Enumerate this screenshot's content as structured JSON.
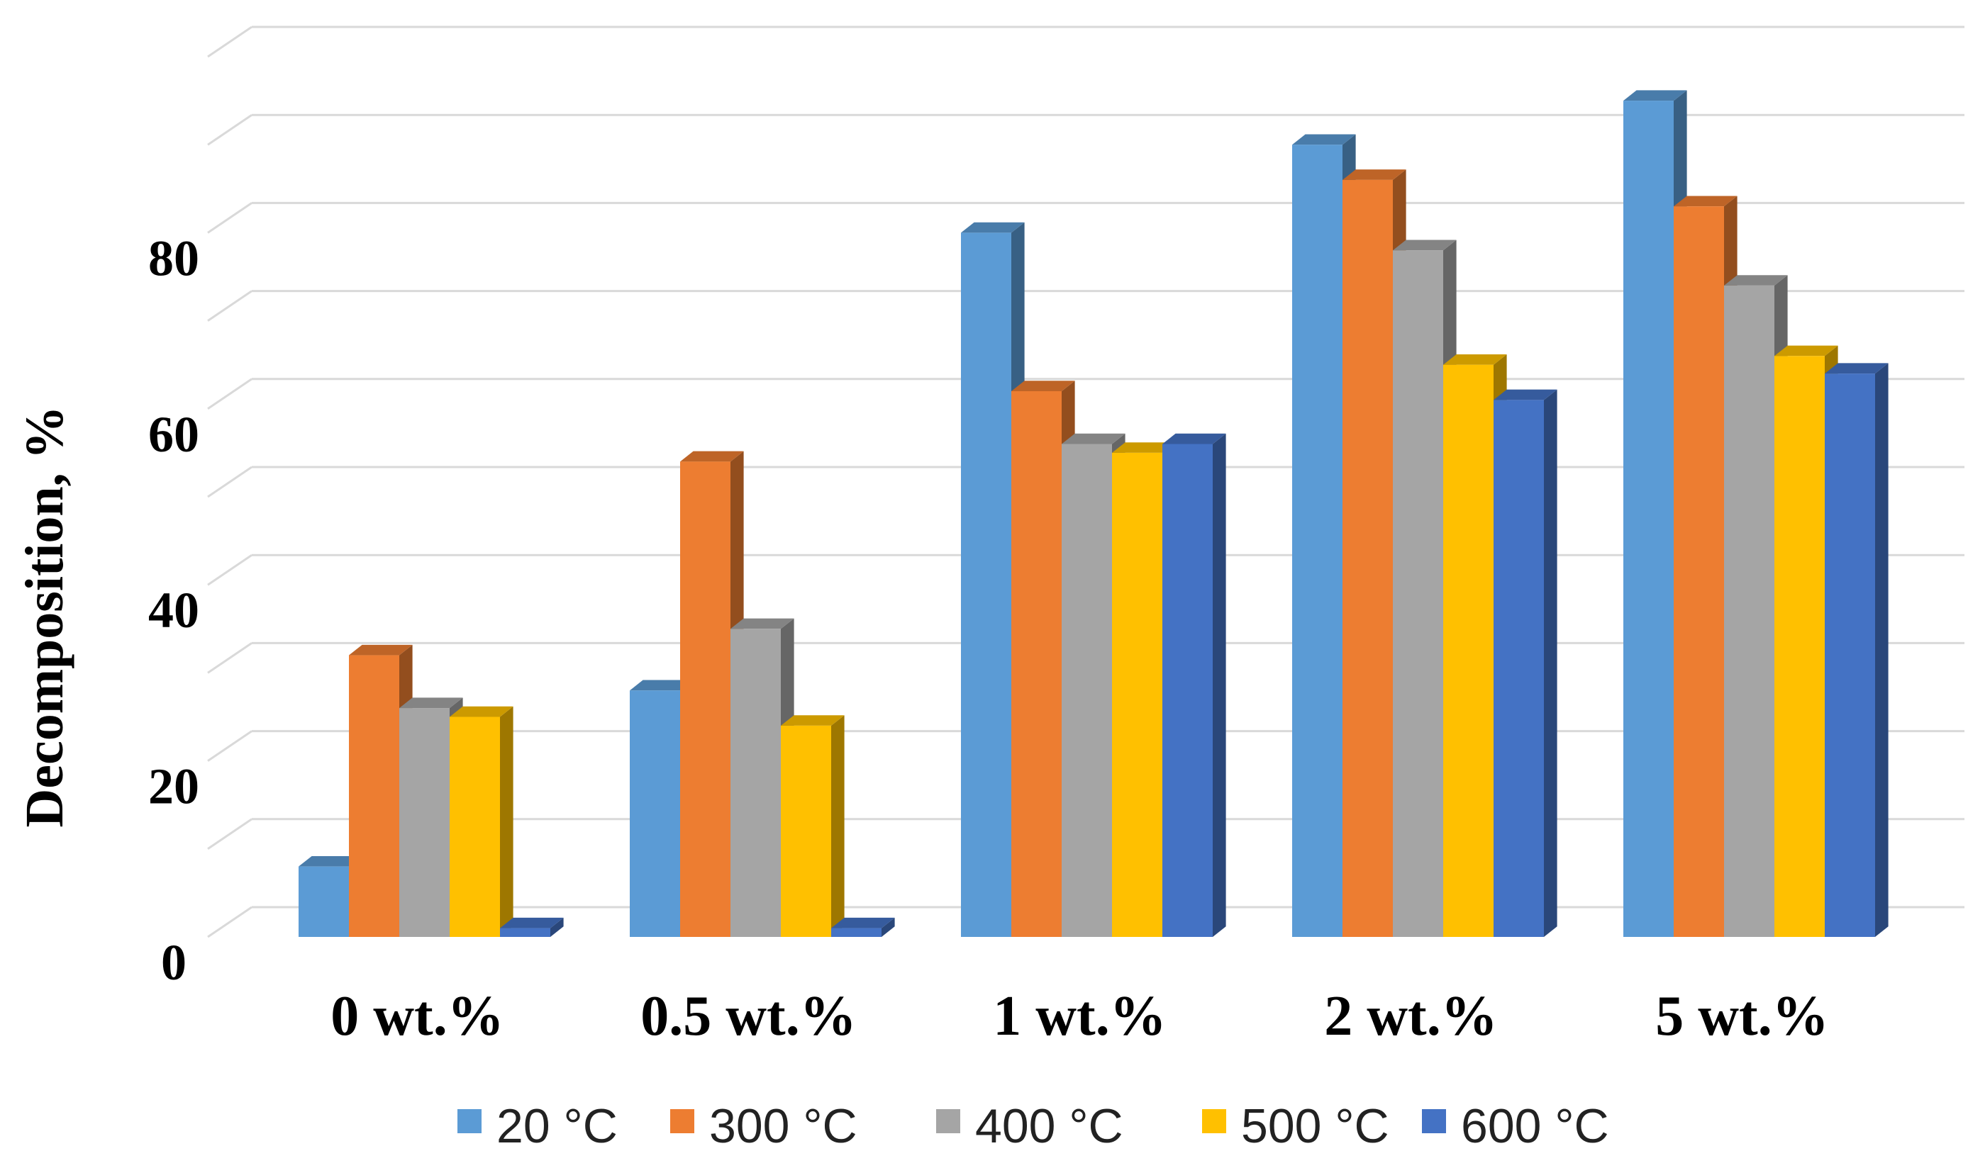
{
  "chart_data": {
    "type": "bar",
    "style": "3d-clustered-column",
    "title": "",
    "xlabel": "",
    "ylabel": "Decomposition, %",
    "ylim": [
      0,
      100
    ],
    "y_ticks_labeled": [
      "0",
      "20",
      "40",
      "60",
      "80"
    ],
    "y_tick_values": [
      0,
      20,
      40,
      60,
      80
    ],
    "gridline_step": 10,
    "grid": true,
    "categories": [
      "0 wt.%",
      "0.5 wt.%",
      "1 wt.%",
      "2 wt.%",
      "5 wt.%"
    ],
    "series": [
      {
        "name": "20 °C",
        "color": "#5B9BD5",
        "values": [
          8,
          28,
          80,
          90,
          95
        ]
      },
      {
        "name": "300 °C",
        "color": "#ED7D31",
        "values": [
          32,
          54,
          62,
          86,
          83
        ]
      },
      {
        "name": "400 °C",
        "color": "#A5A5A5",
        "values": [
          26,
          35,
          56,
          78,
          74
        ]
      },
      {
        "name": "500 °C",
        "color": "#FFC000",
        "values": [
          25,
          24,
          55,
          65,
          66
        ]
      },
      {
        "name": "600 °C",
        "color": "#4472C4",
        "values": [
          1,
          1,
          56,
          61,
          64
        ]
      }
    ],
    "legend_position": "bottom"
  }
}
